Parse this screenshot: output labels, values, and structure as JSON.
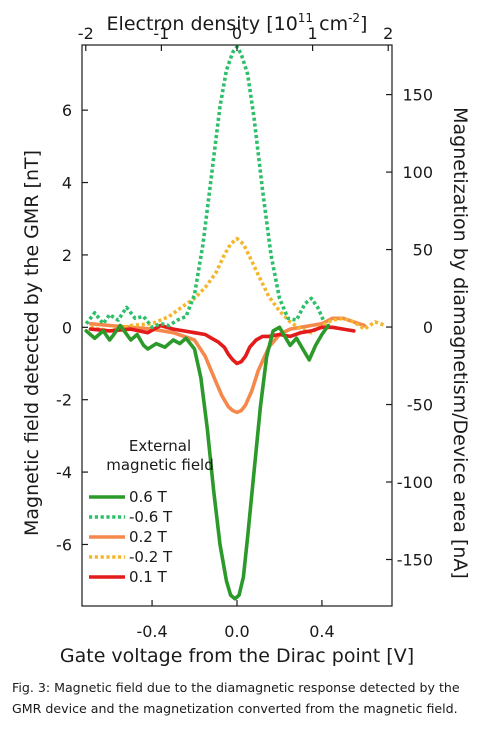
{
  "chart_data": {
    "type": "line",
    "xlabel": "Gate voltage from the Dirac point [V]",
    "x_top_label": "Electron density [10^11 cm^-2]",
    "x_top_label_base": "Electron density [10",
    "x_top_label_exp1": "11",
    "x_top_label_mid": " cm",
    "x_top_label_exp2": "-2",
    "x_top_label_end": "]",
    "ylabel": "Magnetic field detected by the GMR [nT]",
    "y_right_label": "Magnetization by diamagnetism/Device area [nA]",
    "xlim": [
      -0.73,
      0.73
    ],
    "ylim": [
      -7.7,
      7.8
    ],
    "x_top_lim": [
      -2.05,
      2.05
    ],
    "y_right_lim": [
      -180,
      182
    ],
    "x_ticks": [
      -0.4,
      0.0,
      0.4
    ],
    "x_tick_labels": [
      "-0.4",
      "0.0",
      "0.4"
    ],
    "y_ticks": [
      -6,
      -4,
      -2,
      0,
      2,
      4,
      6
    ],
    "y_tick_labels": [
      "-6",
      "-4",
      "-2",
      "0",
      "2",
      "4",
      "6"
    ],
    "x_top_ticks": [
      -2,
      -1,
      0,
      1,
      2
    ],
    "x_top_tick_labels": [
      "-2",
      "-1",
      "0",
      "1",
      "2"
    ],
    "y_right_ticks": [
      -150,
      -100,
      -50,
      0,
      50,
      100,
      150
    ],
    "y_right_tick_labels": [
      "-150",
      "-100",
      "-50",
      "0",
      "50",
      "100",
      "150"
    ],
    "grid": false,
    "legend_title_line1": "External",
    "legend_title_line2": "magnetic field",
    "legend_placement": "lower-left",
    "series": [
      {
        "name": "0.6 T",
        "color": "#2b9a2b",
        "dash": "solid",
        "x": [
          -0.71,
          -0.67,
          -0.63,
          -0.6,
          -0.58,
          -0.55,
          -0.5,
          -0.47,
          -0.44,
          -0.42,
          -0.38,
          -0.34,
          -0.3,
          -0.27,
          -0.24,
          -0.2,
          -0.17,
          -0.14,
          -0.11,
          -0.08,
          -0.05,
          -0.03,
          -0.01,
          0.0,
          0.01,
          0.03,
          0.05,
          0.08,
          0.11,
          0.14,
          0.17,
          0.2,
          0.22,
          0.25,
          0.28,
          0.31,
          0.34,
          0.37,
          0.4,
          0.43
        ],
        "y": [
          -0.1,
          -0.3,
          -0.1,
          -0.35,
          -0.2,
          0.05,
          -0.35,
          -0.2,
          -0.5,
          -0.6,
          -0.45,
          -0.55,
          -0.35,
          -0.45,
          -0.3,
          -0.6,
          -1.4,
          -2.8,
          -4.5,
          -6.0,
          -7.0,
          -7.4,
          -7.5,
          -7.45,
          -7.4,
          -6.9,
          -5.8,
          -4.0,
          -2.2,
          -0.8,
          -0.1,
          0.0,
          -0.2,
          -0.5,
          -0.3,
          -0.6,
          -0.9,
          -0.5,
          -0.2,
          0.05
        ]
      },
      {
        "name": "-0.6 T",
        "color": "#2dbf6a",
        "dash": "dotted",
        "x": [
          -0.71,
          -0.67,
          -0.63,
          -0.6,
          -0.56,
          -0.52,
          -0.48,
          -0.44,
          -0.4,
          -0.36,
          -0.32,
          -0.28,
          -0.24,
          -0.2,
          -0.16,
          -0.12,
          -0.08,
          -0.05,
          -0.02,
          0.0,
          0.02,
          0.05,
          0.08,
          0.12,
          0.16,
          0.2,
          0.24,
          0.28,
          0.32,
          0.35,
          0.38,
          0.41
        ],
        "y": [
          0.1,
          0.4,
          0.1,
          0.35,
          0.2,
          0.55,
          0.25,
          0.3,
          0.0,
          0.1,
          0.05,
          0.2,
          0.3,
          0.9,
          2.3,
          4.2,
          6.1,
          7.1,
          7.6,
          7.75,
          7.55,
          7.0,
          5.8,
          3.8,
          2.0,
          0.8,
          0.25,
          0.2,
          0.65,
          0.8,
          0.55,
          0.15
        ]
      },
      {
        "name": "0.2 T",
        "color": "#f4894b",
        "dash": "solid",
        "x": [
          -0.69,
          -0.6,
          -0.5,
          -0.4,
          -0.3,
          -0.2,
          -0.15,
          -0.1,
          -0.07,
          -0.04,
          -0.02,
          0.0,
          0.02,
          0.04,
          0.07,
          0.1,
          0.15,
          0.2,
          0.25,
          0.3,
          0.35,
          0.4,
          0.45,
          0.5,
          0.55,
          0.6
        ],
        "y": [
          0.1,
          0.05,
          0.0,
          -0.05,
          -0.15,
          -0.35,
          -0.8,
          -1.5,
          -1.9,
          -2.2,
          -2.3,
          -2.35,
          -2.3,
          -2.15,
          -1.75,
          -1.2,
          -0.55,
          -0.2,
          -0.05,
          0.0,
          0.05,
          0.1,
          0.25,
          0.25,
          0.15,
          0.05
        ]
      },
      {
        "name": "-0.2 T",
        "color": "#f5b62d",
        "dash": "dotted",
        "x": [
          -0.69,
          -0.6,
          -0.5,
          -0.4,
          -0.32,
          -0.25,
          -0.2,
          -0.15,
          -0.1,
          -0.06,
          -0.03,
          0.0,
          0.03,
          0.06,
          0.1,
          0.15,
          0.2,
          0.25,
          0.3,
          0.35,
          0.4,
          0.45,
          0.5,
          0.55,
          0.6,
          0.65,
          0.7
        ],
        "y": [
          0.0,
          -0.1,
          0.05,
          0.1,
          0.3,
          0.6,
          0.8,
          1.1,
          1.5,
          2.0,
          2.3,
          2.45,
          2.3,
          1.95,
          1.45,
          0.85,
          0.45,
          0.15,
          -0.05,
          -0.15,
          0.05,
          0.2,
          0.25,
          0.15,
          -0.05,
          0.15,
          0.05
        ]
      },
      {
        "name": "0.1 T",
        "color": "#e31b1b",
        "dash": "solid",
        "x": [
          -0.69,
          -0.6,
          -0.5,
          -0.42,
          -0.36,
          -0.3,
          -0.25,
          -0.2,
          -0.15,
          -0.12,
          -0.09,
          -0.06,
          -0.04,
          -0.02,
          0.0,
          0.02,
          0.04,
          0.06,
          0.09,
          0.12,
          0.15,
          0.2,
          0.25,
          0.3,
          0.35,
          0.4,
          0.45,
          0.5,
          0.55
        ],
        "y": [
          -0.05,
          -0.1,
          -0.05,
          -0.15,
          0.05,
          -0.05,
          -0.1,
          -0.15,
          -0.2,
          -0.3,
          -0.4,
          -0.55,
          -0.75,
          -0.9,
          -1.0,
          -0.95,
          -0.8,
          -0.55,
          -0.35,
          -0.25,
          -0.25,
          -0.2,
          -0.25,
          -0.15,
          -0.1,
          0.0,
          0.0,
          -0.05,
          -0.1
        ]
      }
    ]
  },
  "caption": "Fig. 3: Magnetic field due to the diamagnetic response detected by the GMR device and the magnetization converted from the magnetic field."
}
